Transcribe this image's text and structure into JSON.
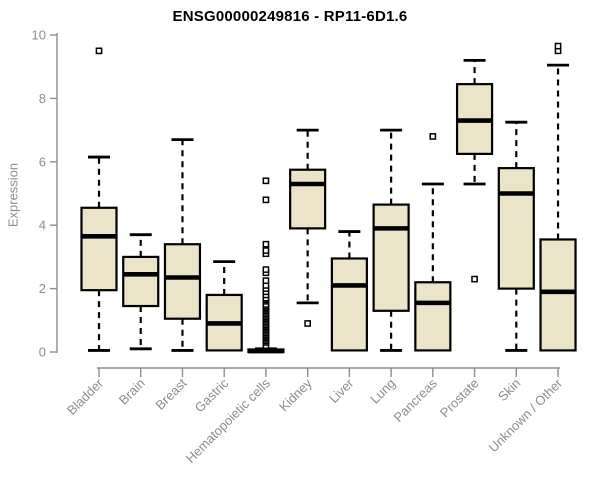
{
  "page": {
    "background": "#ffffff"
  },
  "chart_data": {
    "type": "box",
    "title": "ENSG00000249816 - RP11-6D1.6",
    "xlabel": "",
    "ylabel": "Expression",
    "ylim": [
      0,
      10
    ],
    "yticks": [
      0,
      2,
      4,
      6,
      8,
      10
    ],
    "grid": "off",
    "legend": "none",
    "box_fill": "#ebe4c9",
    "box_stroke": "#000000",
    "axis_color": "#8d8d8d",
    "outlier_fill": "#ffffff",
    "categories": [
      "Bladder",
      "Brain",
      "Breast",
      "Gastric",
      "Hematopoietic cells",
      "Kidney",
      "Liver",
      "Lung",
      "Pancreas",
      "Prostate",
      "Skin",
      "Unknown / Other"
    ],
    "boxes": [
      {
        "category": "Bladder",
        "min": 0.05,
        "q1": 1.95,
        "median": 3.65,
        "q3": 4.55,
        "max": 6.15,
        "outliers": [
          9.5
        ]
      },
      {
        "category": "Brain",
        "min": 0.1,
        "q1": 1.45,
        "median": 2.45,
        "q3": 3.0,
        "max": 3.7,
        "outliers": []
      },
      {
        "category": "Breast",
        "min": 0.05,
        "q1": 1.05,
        "median": 2.35,
        "q3": 3.4,
        "max": 6.7,
        "outliers": []
      },
      {
        "category": "Gastric",
        "min": 0.05,
        "q1": 0.05,
        "median": 0.9,
        "q3": 1.8,
        "max": 2.85,
        "outliers": []
      },
      {
        "category": "Hematopoietic cells",
        "min": 0,
        "q1": 0,
        "median": 0.03,
        "q3": 0.08,
        "max": 0.1,
        "outliers": [
          0.2,
          0.3,
          0.35,
          0.4,
          0.45,
          0.5,
          0.55,
          0.6,
          0.65,
          0.7,
          0.75,
          0.8,
          0.85,
          0.9,
          0.95,
          1.0,
          1.05,
          1.1,
          1.15,
          1.2,
          1.25,
          1.3,
          1.35,
          1.4,
          1.45,
          1.5,
          1.6,
          1.65,
          1.7,
          1.8,
          1.9,
          2.0,
          2.1,
          2.25,
          2.5,
          2.6,
          3.1,
          3.2,
          3.4,
          4.8,
          5.4
        ]
      },
      {
        "category": "Kidney",
        "min": 1.55,
        "q1": 3.9,
        "median": 5.3,
        "q3": 5.75,
        "max": 7.0,
        "outliers": [
          0.9
        ]
      },
      {
        "category": "Liver",
        "min": 0.05,
        "q1": 0.05,
        "median": 2.1,
        "q3": 2.95,
        "max": 3.8,
        "outliers": []
      },
      {
        "category": "Lung",
        "min": 0.05,
        "q1": 1.3,
        "median": 3.9,
        "q3": 4.65,
        "max": 7.0,
        "outliers": []
      },
      {
        "category": "Pancreas",
        "min": 0.05,
        "q1": 0.05,
        "median": 1.55,
        "q3": 2.2,
        "max": 5.3,
        "outliers": [
          6.8
        ]
      },
      {
        "category": "Prostate",
        "min": 5.3,
        "q1": 6.25,
        "median": 7.3,
        "q3": 8.45,
        "max": 9.2,
        "outliers": [
          2.3
        ]
      },
      {
        "category": "Skin",
        "min": 0.05,
        "q1": 2.0,
        "median": 5.0,
        "q3": 5.8,
        "max": 7.25,
        "outliers": []
      },
      {
        "category": "Unknown / Other",
        "min": 0.05,
        "q1": 0.05,
        "median": 1.9,
        "q3": 3.55,
        "max": 9.05,
        "outliers": [
          9.5,
          9.65
        ]
      }
    ]
  }
}
